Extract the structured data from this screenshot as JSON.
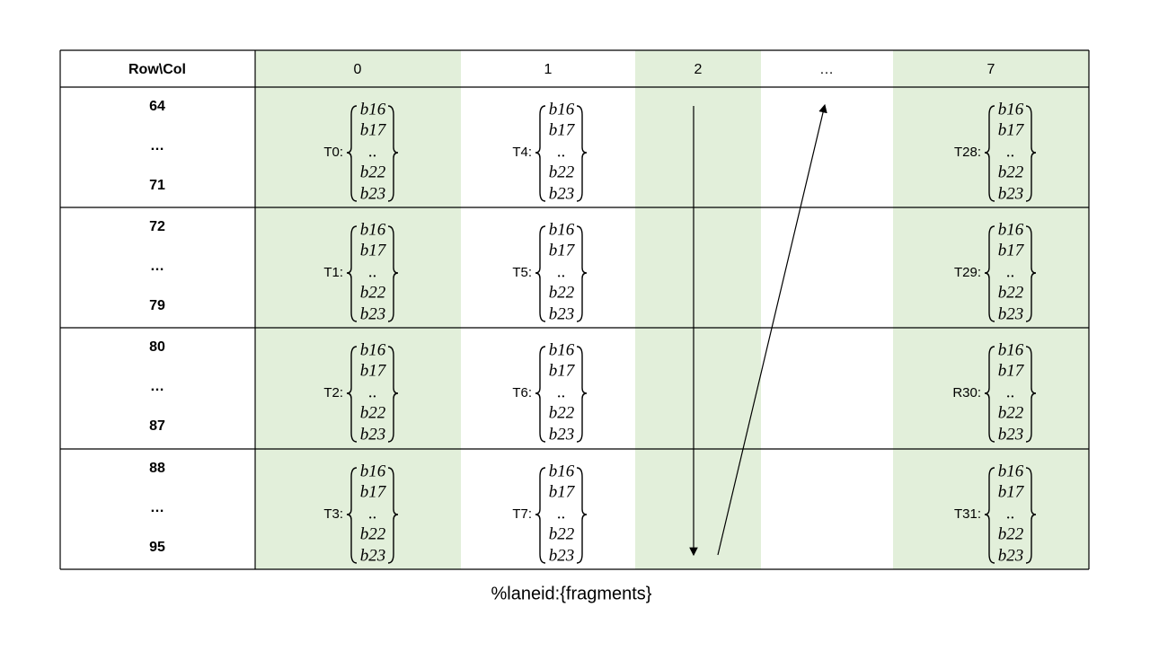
{
  "table": {
    "header": [
      "Row\\Col",
      "0",
      "1",
      "2",
      "…",
      "7"
    ],
    "rows": [
      {
        "row_labels": [
          "64",
          "…",
          "71"
        ],
        "cells": [
          {
            "label": "T0:",
            "fragments": [
              "b16",
              "b17",
              "..",
              "b22",
              "b23"
            ]
          },
          {
            "label": "T4:",
            "fragments": [
              "b16",
              "b17",
              "..",
              "b22",
              "b23"
            ]
          },
          {
            "label": "T28:",
            "fragments": [
              "b16",
              "b17",
              "..",
              "b22",
              "b23"
            ]
          }
        ]
      },
      {
        "row_labels": [
          "72",
          "…",
          "79"
        ],
        "cells": [
          {
            "label": "T1:",
            "fragments": [
              "b16",
              "b17",
              "..",
              "b22",
              "b23"
            ]
          },
          {
            "label": "T5:",
            "fragments": [
              "b16",
              "b17",
              "..",
              "b22",
              "b23"
            ]
          },
          {
            "label": "T29:",
            "fragments": [
              "b16",
              "b17",
              "..",
              "b22",
              "b23"
            ]
          }
        ]
      },
      {
        "row_labels": [
          "80",
          "…",
          "87"
        ],
        "cells": [
          {
            "label": "T2:",
            "fragments": [
              "b16",
              "b17",
              "..",
              "b22",
              "b23"
            ]
          },
          {
            "label": "T6:",
            "fragments": [
              "b16",
              "b17",
              "..",
              "b22",
              "b23"
            ]
          },
          {
            "label": "R30:",
            "fragments": [
              "b16",
              "b17",
              "..",
              "b22",
              "b23"
            ]
          }
        ]
      },
      {
        "row_labels": [
          "88",
          "…",
          "95"
        ],
        "cells": [
          {
            "label": "T3:",
            "fragments": [
              "b16",
              "b17",
              "..",
              "b22",
              "b23"
            ]
          },
          {
            "label": "T7:",
            "fragments": [
              "b16",
              "b17",
              "..",
              "b22",
              "b23"
            ]
          },
          {
            "label": "T31:",
            "fragments": [
              "b16",
              "b17",
              "..",
              "b22",
              "b23"
            ]
          }
        ]
      }
    ]
  },
  "caption": "%laneid:{fragments}"
}
